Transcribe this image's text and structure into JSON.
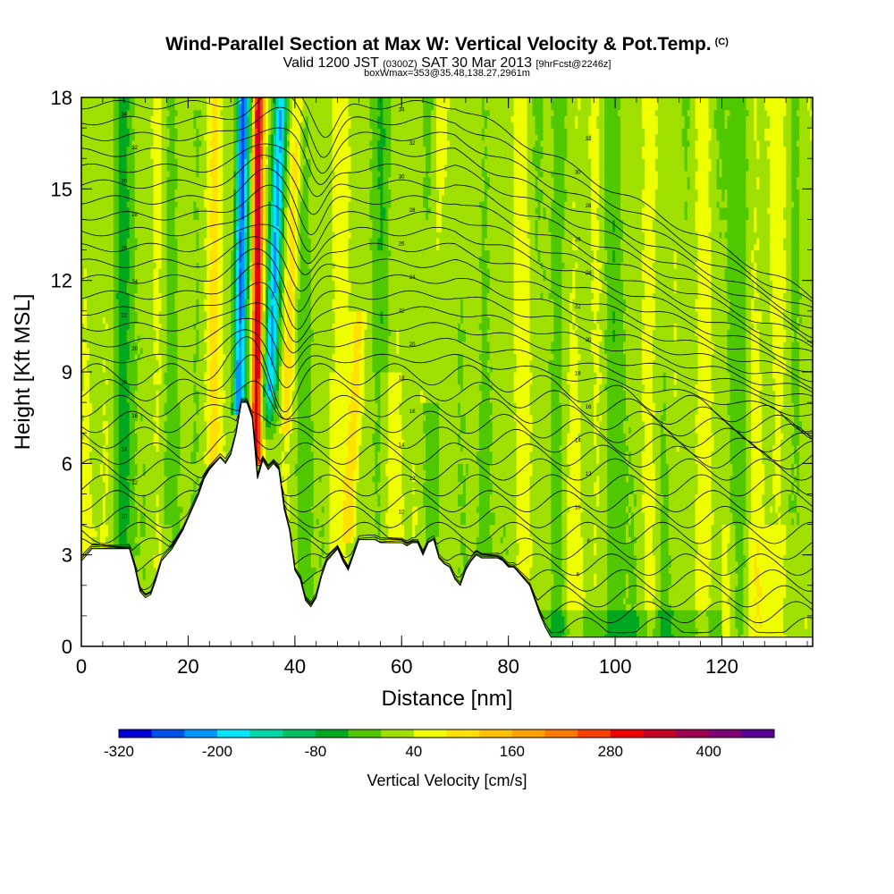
{
  "chart_data": {
    "type": "heatmap",
    "title": "Wind-Parallel Section at Max W: Vertical Velocity & Pot.Temp.",
    "title_mark": "(C)",
    "subtitle_parts": [
      "Valid 1200 JST",
      "(0300Z)",
      "SAT 30 Mar 2013",
      "[9hrFcst@2246z]"
    ],
    "subtitle2": "boxWmax=353@35.48,138.27,2961m",
    "xlabel": "Distance [nm]",
    "ylabel": "Height [Kft MSL]",
    "xlim": [
      0,
      137
    ],
    "ylim": [
      0,
      18
    ],
    "xticks": [
      0,
      20,
      40,
      60,
      80,
      100,
      120
    ],
    "yticks": [
      0,
      3,
      6,
      9,
      12,
      15,
      18
    ],
    "colorbar": {
      "label": "Vertical Velocity [cm/s]",
      "tick_labels": [
        -320,
        -200,
        -80,
        40,
        160,
        280,
        400
      ],
      "levels": [
        -320,
        -280,
        -240,
        -200,
        -160,
        -120,
        -80,
        -40,
        0,
        40,
        80,
        120,
        160,
        200,
        240,
        280,
        320,
        360,
        400,
        440
      ],
      "colors": [
        "#0000d8",
        "#0050f0",
        "#0096ff",
        "#00e6ff",
        "#00d8a8",
        "#00c060",
        "#00a820",
        "#50c800",
        "#a0e000",
        "#f0ff00",
        "#ffe000",
        "#ffc000",
        "#ffa000",
        "#ff7800",
        "#ff4000",
        "#f00000",
        "#c80028",
        "#a00050",
        "#800078",
        "#5a0096"
      ]
    },
    "velocity_features": [
      {
        "x": 30,
        "ymin": 7.7,
        "ymax": 18,
        "w": -240
      },
      {
        "x": 33,
        "ymin": 6.2,
        "ymax": 18,
        "w": 320
      },
      {
        "x": 36,
        "ymin": 6.5,
        "ymax": 18,
        "w": -200
      },
      {
        "x": 51,
        "ymin": 3.5,
        "ymax": 10,
        "w": 80
      },
      {
        "x": 66,
        "ymin": 8,
        "ymax": 18,
        "w": 40
      },
      {
        "x": 12,
        "ymin": 3,
        "ymax": 18,
        "w": -80
      }
    ],
    "terrain": {
      "x": [
        0,
        1,
        2,
        5,
        8,
        9,
        10,
        11,
        12,
        13,
        14,
        15,
        16,
        17,
        18,
        19,
        20,
        21,
        22,
        23,
        24,
        25,
        26,
        27,
        28,
        29,
        30,
        31,
        32,
        33,
        34,
        35,
        36,
        37,
        38,
        39,
        40,
        41,
        42,
        43,
        44,
        45,
        46,
        47,
        48,
        49,
        50,
        51,
        52,
        53,
        54,
        55,
        56,
        57,
        58,
        59,
        60,
        61,
        62,
        63,
        64,
        65,
        66,
        67,
        68,
        69,
        70,
        71,
        72,
        73,
        74,
        75,
        76,
        77,
        78,
        79,
        80,
        81,
        82,
        83,
        84,
        85,
        86,
        87,
        88,
        90,
        95,
        100,
        110,
        120,
        130,
        137
      ],
      "y": [
        2.8,
        3.0,
        3.2,
        3.2,
        3.2,
        3.2,
        2.6,
        1.8,
        1.6,
        1.7,
        2.2,
        2.8,
        3.0,
        3.2,
        3.5,
        3.8,
        4.2,
        4.6,
        5.0,
        5.5,
        5.8,
        6.0,
        6.2,
        6.0,
        6.3,
        7.0,
        8.0,
        8.0,
        7.5,
        5.5,
        6.1,
        5.8,
        6.0,
        5.8,
        4.5,
        3.8,
        2.5,
        2.2,
        1.5,
        1.3,
        1.6,
        2.3,
        2.8,
        3.0,
        3.2,
        2.8,
        2.5,
        3.0,
        3.5,
        3.5,
        3.5,
        3.5,
        3.4,
        3.4,
        3.4,
        3.4,
        3.4,
        3.3,
        3.4,
        3.4,
        3.0,
        3.4,
        3.5,
        2.9,
        2.7,
        2.6,
        2.2,
        2.0,
        2.5,
        2.8,
        3.0,
        2.9,
        2.9,
        2.9,
        2.9,
        2.8,
        2.6,
        2.6,
        2.4,
        2.2,
        2.0,
        1.5,
        1.0,
        0.6,
        0.3,
        0.3,
        0.3,
        0.3,
        0.3,
        0.3,
        0.3,
        0.3
      ]
    },
    "theta_label_values": [
      6,
      8,
      10,
      12,
      14,
      16,
      18,
      20,
      22,
      24,
      26,
      28,
      30,
      32,
      34
    ]
  }
}
